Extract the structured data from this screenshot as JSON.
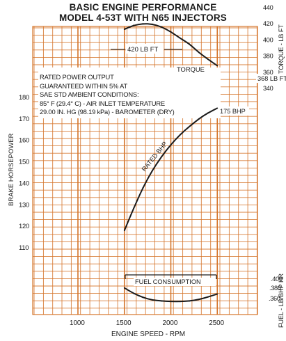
{
  "chart_data": {
    "type": "line",
    "title": "BASIC ENGINE PERFORMANCE",
    "subtitle": "MODEL 4-53T WITH N65 INJECTORS",
    "xlabel": "ENGINE SPEED - RPM",
    "x_ticks": [
      1000,
      1500,
      2000,
      2500
    ],
    "xlim": [
      700,
      2900
    ],
    "left_axis": {
      "label": "BRAKE HORSEPOWER",
      "ticks": [
        110,
        120,
        130,
        140,
        150,
        160,
        170,
        180
      ],
      "ylim": [
        100,
        220
      ]
    },
    "torque_axis": {
      "label": "TORQUE - LB FT",
      "ticks": [
        340,
        360,
        380,
        400,
        420,
        440
      ],
      "ylim": [
        330,
        450
      ]
    },
    "fuel_axis": {
      "label": "FUEL - LB/BHP HR",
      "ticks": [
        ".380",
        ".400",
        ".360"
      ]
    },
    "note": [
      "RATED POWER OUTPUT",
      "GUARANTEED WITHIN 5% AT",
      "SAE STD AMBIENT CONDITIONS:",
      "85° F (29.4° C) - AIR INLET TEMPERATURE",
      "29.00 IN. HG (98.19 kPa) - BAROMETER (DRY)"
    ],
    "series": [
      {
        "name": "RATED BHP",
        "axis": "left",
        "x": [
          1500,
          1600,
          1700,
          1800,
          1900,
          2000,
          2100,
          2200,
          2300,
          2400,
          2500
        ],
        "y": [
          118,
          128.4,
          138,
          146,
          152.5,
          158,
          162.7,
          166.5,
          170,
          172.8,
          175
        ]
      },
      {
        "name": "TORQUE",
        "axis": "torque",
        "x": [
          1500,
          1600,
          1700,
          1800,
          1900,
          2000,
          2100,
          2200,
          2300,
          2400,
          2500
        ],
        "y": [
          413,
          418,
          420,
          419.5,
          416,
          410,
          402,
          395,
          384.5,
          376,
          368
        ]
      },
      {
        "name": "FUEL CONSUMPTION",
        "axis": "fuel",
        "x": [
          1500,
          1600,
          1700,
          1800,
          1900,
          2000,
          2100,
          2200,
          2300,
          2400,
          2500
        ],
        "y": [
          0.388,
          0.377,
          0.369,
          0.364,
          0.362,
          0.361,
          0.361,
          0.362,
          0.365,
          0.37,
          0.376
        ]
      }
    ],
    "annotations": [
      {
        "text": "420 LB FT"
      },
      {
        "text": "368 LB FT"
      },
      {
        "text": "175 BHP"
      },
      {
        "text": "TORQUE"
      },
      {
        "text": "RATED BHP"
      },
      {
        "text": "FUEL CONSUMPTION"
      }
    ],
    "grid": true,
    "colors": {
      "grid": "#d4742a",
      "ink": "#1a1a1a",
      "background": "#ffffff"
    }
  }
}
